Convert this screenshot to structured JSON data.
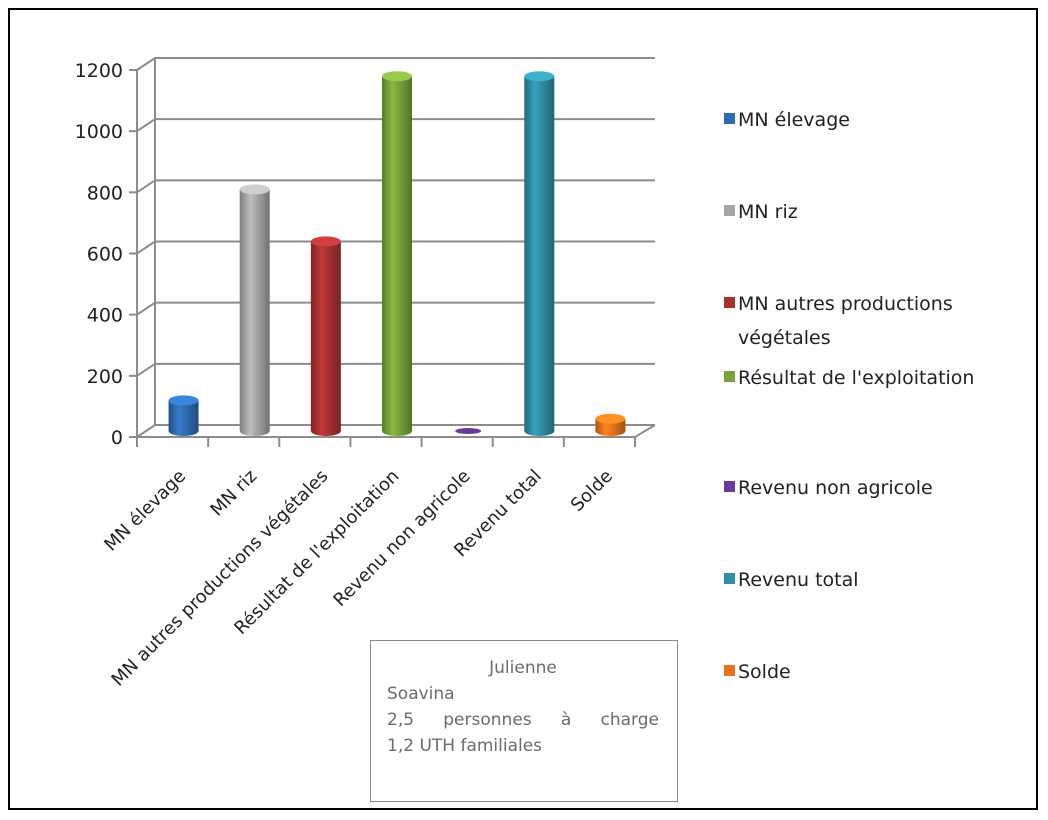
{
  "chart_data": {
    "type": "bar",
    "categories": [
      "MN élevage",
      "MN riz",
      "MN autres productions végétales",
      "Résultat de l'exploitation",
      "Revenu non agricole",
      "Revenu total",
      "Solde"
    ],
    "values": [
      100,
      790,
      620,
      1160,
      5,
      1160,
      40
    ],
    "colors": [
      "#2E6BB0",
      "#A5A5A5",
      "#A83232",
      "#77A33A",
      "#6A3A9A",
      "#2F8EA5",
      "#E8731C"
    ],
    "ylim": [
      0,
      1200
    ],
    "yticks": [
      0,
      200,
      400,
      600,
      800,
      1000,
      1200
    ],
    "grid": true,
    "legend_position": "right",
    "legend": [
      {
        "lines": [
          "MN élevage"
        ]
      },
      {
        "lines": [
          "MN riz"
        ]
      },
      {
        "lines": [
          "MN autres productions",
          "végétales"
        ]
      },
      {
        "lines": [
          "Résultat de l'exploitation"
        ]
      },
      {
        "lines": [
          "Revenu non agricole"
        ]
      },
      {
        "lines": [
          "Revenu total"
        ]
      },
      {
        "lines": [
          "Solde"
        ]
      }
    ]
  },
  "info_box": {
    "name": "Julienne",
    "place": "Soavina",
    "dependents": "2,5 personnes à charge",
    "workers": "1,2 UTH familiales"
  }
}
